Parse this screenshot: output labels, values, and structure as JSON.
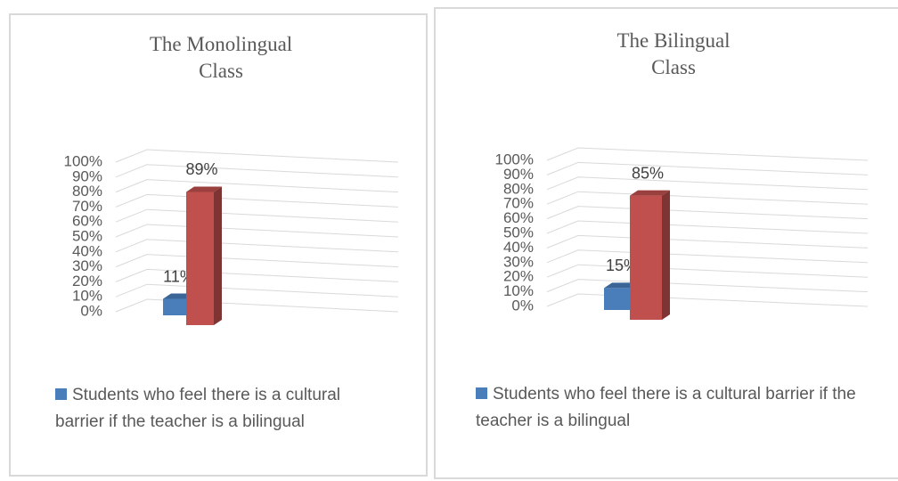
{
  "chart_data": [
    {
      "type": "bar3d",
      "title": "The Monolingual Class",
      "series": [
        {
          "name": "Students who feel there is a cultural barrier if the teacher is a bilingual",
          "color": "#4a7ebb",
          "values": [
            11
          ],
          "value_labels": [
            "11%"
          ]
        },
        {
          "color": "#c0504d",
          "values": [
            89
          ],
          "value_labels": [
            "89%"
          ]
        }
      ],
      "ylim": [
        0,
        100
      ],
      "yticks": [
        {
          "value": 0,
          "label": "0%"
        },
        {
          "value": 10,
          "label": "10%"
        },
        {
          "value": 20,
          "label": "20%"
        },
        {
          "value": 30,
          "label": "30%"
        },
        {
          "value": 40,
          "label": "40%"
        },
        {
          "value": 50,
          "label": "50%"
        },
        {
          "value": 60,
          "label": "60%"
        },
        {
          "value": 70,
          "label": "70%"
        },
        {
          "value": 80,
          "label": "80%"
        },
        {
          "value": 90,
          "label": "90%"
        },
        {
          "value": 100,
          "label": "100%"
        }
      ],
      "grid": true
    },
    {
      "type": "bar3d",
      "title": "The Bilingual Class",
      "series": [
        {
          "name": "Students who feel there is a cultural barrier if the teacher is a bilingual",
          "color": "#4a7ebb",
          "values": [
            15
          ],
          "value_labels": [
            "15%"
          ]
        },
        {
          "color": "#c0504d",
          "values": [
            85
          ],
          "value_labels": [
            "85%"
          ]
        }
      ],
      "ylim": [
        0,
        100
      ],
      "yticks": [
        {
          "value": 0,
          "label": "0%"
        },
        {
          "value": 10,
          "label": "10%"
        },
        {
          "value": 20,
          "label": "20%"
        },
        {
          "value": 30,
          "label": "30%"
        },
        {
          "value": 40,
          "label": "40%"
        },
        {
          "value": 50,
          "label": "50%"
        },
        {
          "value": 60,
          "label": "60%"
        },
        {
          "value": 70,
          "label": "70%"
        },
        {
          "value": 80,
          "label": "80%"
        },
        {
          "value": 90,
          "label": "90%"
        },
        {
          "value": 100,
          "label": "100%"
        }
      ],
      "grid": true
    }
  ]
}
